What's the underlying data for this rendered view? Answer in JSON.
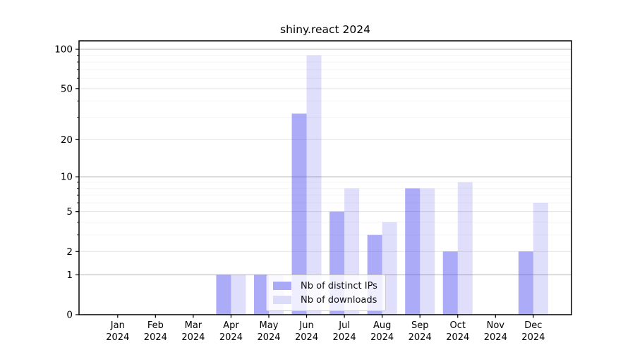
{
  "chart_data": {
    "type": "bar",
    "title": "shiny.react 2024",
    "categories": [
      "Jan",
      "Feb",
      "Mar",
      "Apr",
      "May",
      "Jun",
      "Jul",
      "Aug",
      "Sep",
      "Oct",
      "Nov",
      "Dec"
    ],
    "x_year_label": "2024",
    "series": [
      {
        "name": "Nb of distinct IPs",
        "color": "#a9a9f6",
        "fill_rgba": "rgba(72,72,240,0.46)",
        "values": [
          0,
          0,
          0,
          1,
          1,
          32,
          5,
          3,
          8,
          2,
          0,
          2
        ]
      },
      {
        "name": "Nb of downloads",
        "color": "#dcdcf9",
        "fill_rgba": "rgba(72,72,240,0.175)",
        "values": [
          0,
          0,
          0,
          1,
          1,
          90,
          8,
          4,
          8,
          9,
          0,
          6
        ]
      }
    ],
    "yscale": "log1p",
    "ylim": [
      0,
      116
    ],
    "yticks": [
      0,
      1,
      2,
      5,
      10,
      20,
      50,
      100
    ],
    "yticks_minor": [
      3,
      4,
      6,
      7,
      8,
      9,
      30,
      40,
      60,
      70,
      80,
      90
    ],
    "grid": true,
    "legend_position": "bottom-center",
    "style": {
      "background": "#ffffff",
      "spine_color": "#000000",
      "grid_decade_color": "#b0b0b0",
      "grid_major_color": "#e3e3e3",
      "grid_minor_color": "#f2f2f2",
      "tick_color": "#000000",
      "legend_border": "#cccccc"
    }
  }
}
